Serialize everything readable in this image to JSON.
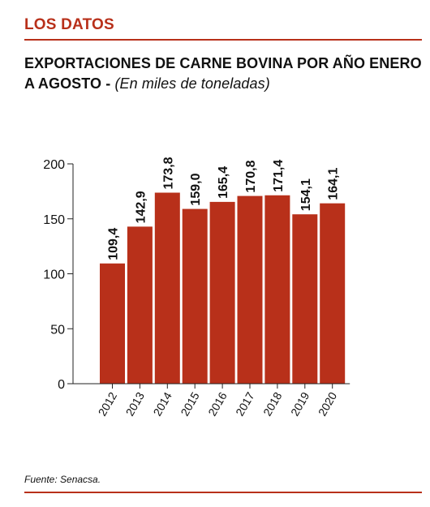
{
  "header": {
    "section_label": "LOS DATOS",
    "title_main": "EXPORTACIONES DE CARNE BOVINA POR AÑO ENERO A AGOSTO - ",
    "title_sub": "(En miles de toneladas)"
  },
  "source": "Fuente: Senacsa.",
  "colors": {
    "accent": "#b8301a",
    "bar": "#b8301a"
  },
  "chart_data": {
    "type": "bar",
    "categories": [
      "2012",
      "2013",
      "2014",
      "2015",
      "2016",
      "2017",
      "2018",
      "2019",
      "2020"
    ],
    "values": [
      109.4,
      142.9,
      173.8,
      159.0,
      165.4,
      170.8,
      171.4,
      154.1,
      164.1
    ],
    "value_labels": [
      "109,4",
      "142,9",
      "173,8",
      "159,0",
      "165,4",
      "170,8",
      "171,4",
      "154,1",
      "164,1"
    ],
    "yticks": [
      0,
      50,
      100,
      150,
      200
    ],
    "ylim": [
      0,
      200
    ],
    "grid": false,
    "title": "",
    "xlabel": "",
    "ylabel": ""
  }
}
